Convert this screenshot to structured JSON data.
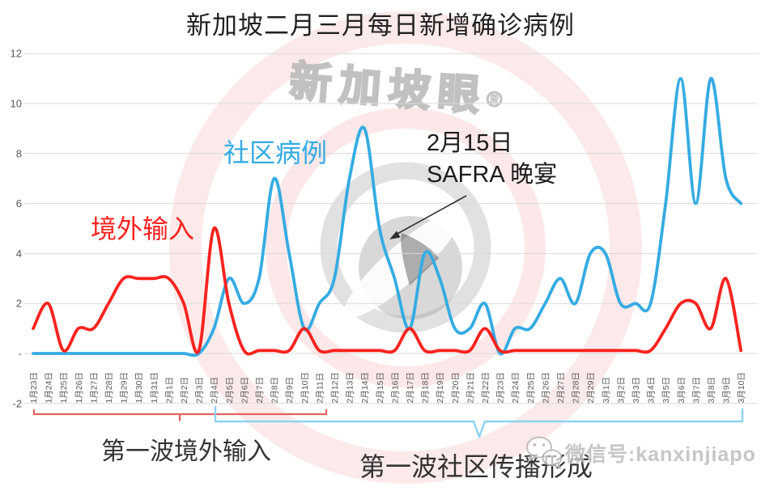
{
  "title": "新加坡二月三月每日新增确诊病例",
  "series_labels": {
    "community": "社区病例",
    "imported": "境外输入"
  },
  "annotation": {
    "line1": "2月15日",
    "line2": "SAFRA 晚宴"
  },
  "bottom_labels": {
    "imported_wave": "第一波境外输入",
    "community_wave": "第一波社区传播形成"
  },
  "watermarks": {
    "brand": "新加坡眼",
    "registered": "®",
    "wechat_id": "微信号:kanxinjiapo"
  },
  "colors": {
    "community": "#35ABE2",
    "imported": "#F8231F",
    "grid": "#D9D9D9",
    "axis_text": "#595959",
    "bracket_red": "#E2625C",
    "bracket_blue": "#8BD3F2",
    "annotation_text": "#1C1C1C",
    "arrow": "#303030"
  },
  "chart_data": {
    "type": "line",
    "title": "新加坡二月三月每日新增确诊病例",
    "xlabel": "",
    "ylabel": "",
    "ylim": [
      -2,
      12
    ],
    "grid": true,
    "legend": "inline-text-labels",
    "yticks": [
      {
        "value": 12,
        "label": "12"
      },
      {
        "value": 10,
        "label": "10"
      },
      {
        "value": 8,
        "label": "8"
      },
      {
        "value": 6,
        "label": "6"
      },
      {
        "value": 4,
        "label": "4"
      },
      {
        "value": 2,
        "label": "2"
      },
      {
        "value": 0,
        "label": "-"
      },
      {
        "value": -2,
        "label": "-2"
      }
    ],
    "categories": [
      "1月23日",
      "1月24日",
      "1月25日",
      "1月26日",
      "1月27日",
      "1月28日",
      "1月29日",
      "1月30日",
      "1月31日",
      "2月1日",
      "2月2日",
      "2月3日",
      "2月4日",
      "2月5日",
      "2月6日",
      "2月7日",
      "2月8日",
      "2月9日",
      "2月10日",
      "2月11日",
      "2月12日",
      "2月13日",
      "2月14日",
      "2月15日",
      "2月16日",
      "2月17日",
      "2月18日",
      "2月19日",
      "2月20日",
      "2月21日",
      "2月22日",
      "2月23日",
      "2月24日",
      "2月25日",
      "2月26日",
      "2月27日",
      "2月28日",
      "2月29日",
      "3月1日",
      "3月2日",
      "3月3日",
      "3月4日",
      "3月5日",
      "3月6日",
      "3月7日",
      "3月8日",
      "3月9日",
      "3月10日"
    ],
    "series": [
      {
        "name": "境外输入",
        "color": "#F8231F",
        "draw_floor": 0.12,
        "values": [
          1,
          2,
          0,
          1,
          1,
          2,
          3,
          3,
          3,
          3,
          2,
          0,
          5,
          2,
          0,
          0,
          0,
          0,
          1,
          0,
          0,
          0,
          0,
          0,
          0,
          1,
          0,
          0,
          0,
          0,
          1,
          0,
          0,
          0,
          0,
          0,
          0,
          0,
          0,
          0,
          0,
          0,
          1,
          2,
          2,
          1,
          3,
          0
        ]
      },
      {
        "name": "社区病例",
        "color": "#35ABE2",
        "draw_floor": 0,
        "values": [
          0,
          0,
          0,
          0,
          0,
          0,
          0,
          0,
          0,
          0,
          0,
          0,
          1,
          3,
          2,
          3,
          7,
          4,
          1,
          2,
          3,
          7,
          9,
          5,
          3,
          1,
          4,
          3,
          1,
          1,
          2,
          0,
          1,
          1,
          2,
          3,
          2,
          4,
          4,
          2,
          2,
          2,
          6,
          11,
          6,
          11,
          7,
          6
        ]
      }
    ],
    "annotations": [
      {
        "text": "2月15日 SAFRA 晚宴",
        "points_to_category": "2月15日"
      }
    ]
  }
}
